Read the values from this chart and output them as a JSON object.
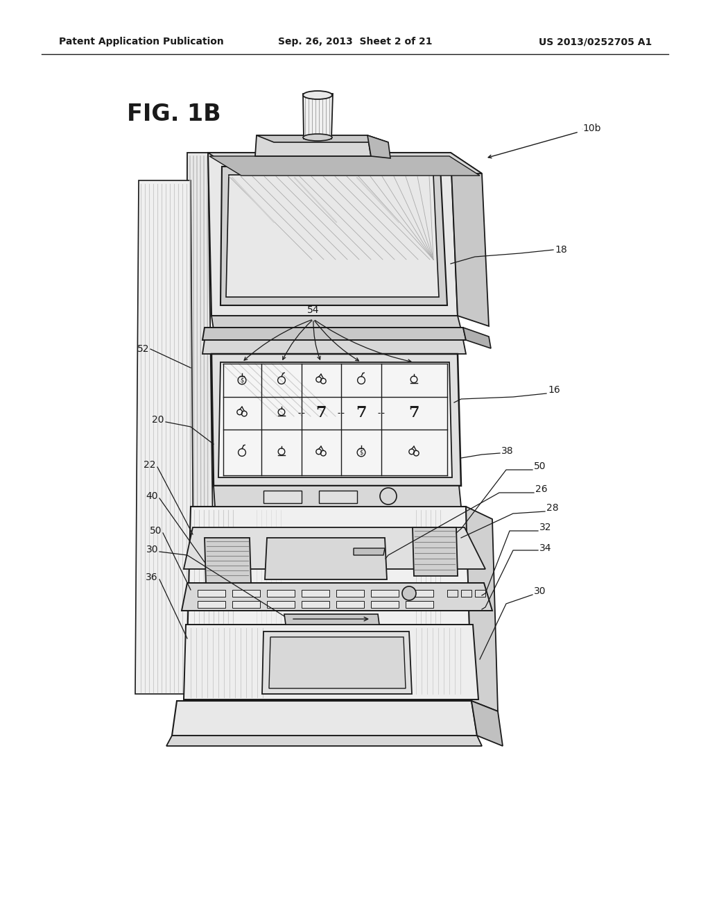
{
  "header_left": "Patent Application Publication",
  "header_center": "Sep. 26, 2013  Sheet 2 of 21",
  "header_right": "US 2013/0252705 A1",
  "fig_label": "FIG. 1B",
  "machine_ref": "10b",
  "background_color": "#ffffff",
  "lc": "#1a1a1a",
  "gray1": "#aaaaaa",
  "gray2": "#cccccc",
  "gray3": "#e0e0e0",
  "gray4": "#d0d0d0"
}
